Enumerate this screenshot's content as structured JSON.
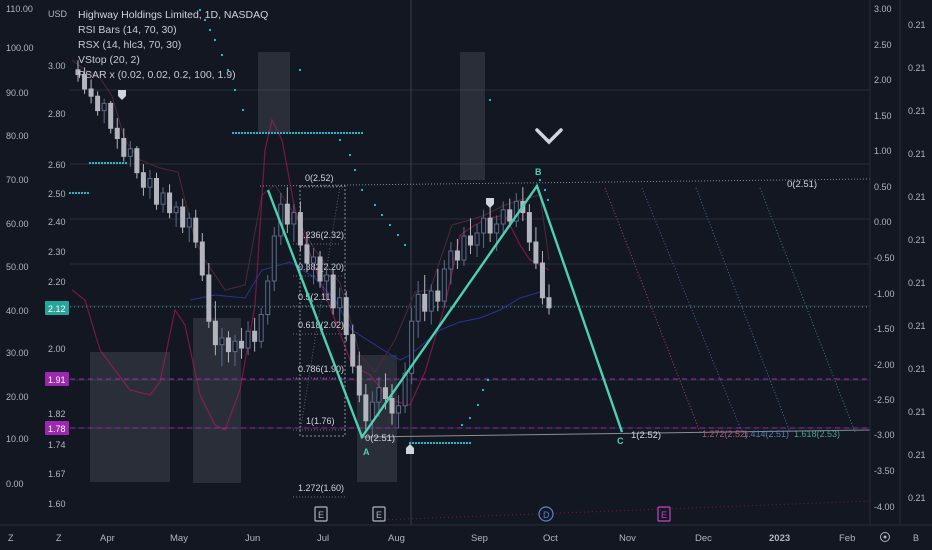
{
  "header": {
    "title": "Highway Holdings Limited, 1D, NASDAQ",
    "currency": "USD",
    "indicators": [
      "RSI Bars (14, 70, 30)",
      "RSX (14, hlc3, 70, 30)",
      "VStop (20, 2)",
      "PSAR x (0.02, 0.02, 0.2, 100, 1.9)"
    ]
  },
  "bottom_bar": {
    "left_icon": "zoom-icon",
    "right_icon": "settings-icon",
    "corner_labels": [
      "Z",
      "Z",
      "B"
    ]
  },
  "chart_data": {
    "type": "candlestick",
    "x_ticks": [
      "Apr",
      "May",
      "Jun",
      "Jul",
      "Aug",
      "Sep",
      "Oct",
      "Nov",
      "Dec",
      "2023",
      "Feb"
    ],
    "price_axis_inner": {
      "ticks": [
        "3.00",
        "2.80",
        "2.60",
        "2.50",
        "2.40",
        "2.30",
        "2.20",
        "2.00",
        "1.82",
        "1.74",
        "1.67",
        "1.60"
      ]
    },
    "rsi_axis_left": {
      "ticks": [
        "110.00",
        "100.00",
        "90.00",
        "80.00",
        "70.00",
        "60.00",
        "50.00",
        "40.00",
        "30.00",
        "20.00",
        "10.00",
        "0.00"
      ]
    },
    "rsx_axis_right": {
      "ticks": [
        "3.00",
        "2.50",
        "2.00",
        "1.50",
        "1.00",
        "0.50",
        "0.00",
        "-0.50",
        "-1.00",
        "-1.50",
        "-2.00",
        "-2.50",
        "-3.00",
        "-3.50",
        "-4.00"
      ]
    },
    "far_right_axis": {
      "ticks": [
        "0.21",
        "0.21",
        "0.21",
        "0.21",
        "0.21",
        "0.21",
        "0.21",
        "0.21",
        "0.21",
        "0.21",
        "0.21",
        "0.21"
      ]
    },
    "price_badges": [
      {
        "value": "2.12",
        "color": "#26a69a"
      },
      {
        "value": "1.91",
        "color": "#9c27b0"
      },
      {
        "value": "1.78",
        "color": "#9c27b0"
      }
    ],
    "fib_retracement": {
      "levels": [
        "0(2.52)",
        "0.236(2.32)",
        "0.382(2.20)",
        "0.5(2.11)",
        "0.618(2.02)",
        "0.786(1.90)",
        "1(1.76)",
        "1.272(1.60)"
      ]
    },
    "pattern_points": [
      "A",
      "B",
      "C"
    ],
    "pattern_labels": [
      "0(2.51)",
      "1(2.52)",
      "0(2.51)",
      "1.272(2.52)",
      "1.414(2.51)",
      "1.618(2.53)"
    ],
    "events": [
      "E",
      "E",
      "D",
      "E"
    ],
    "candles": [
      [
        2.98,
        3.02,
        2.93,
        2.96
      ],
      [
        2.96,
        2.99,
        2.88,
        2.9
      ],
      [
        2.9,
        2.94,
        2.84,
        2.87
      ],
      [
        2.87,
        2.89,
        2.79,
        2.81
      ],
      [
        2.81,
        2.86,
        2.76,
        2.84
      ],
      [
        2.84,
        2.85,
        2.72,
        2.74
      ],
      [
        2.74,
        2.78,
        2.66,
        2.7
      ],
      [
        2.7,
        2.74,
        2.61,
        2.63
      ],
      [
        2.63,
        2.69,
        2.59,
        2.66
      ],
      [
        2.66,
        2.67,
        2.55,
        2.57
      ],
      [
        2.57,
        2.6,
        2.49,
        2.52
      ],
      [
        2.52,
        2.58,
        2.48,
        2.55
      ],
      [
        2.55,
        2.57,
        2.44,
        2.46
      ],
      [
        2.46,
        2.52,
        2.43,
        2.5
      ],
      [
        2.5,
        2.53,
        2.41,
        2.43
      ],
      [
        2.43,
        2.47,
        2.38,
        2.45
      ],
      [
        2.45,
        2.48,
        2.36,
        2.38
      ],
      [
        2.38,
        2.43,
        2.33,
        2.41
      ],
      [
        2.41,
        2.44,
        2.31,
        2.33
      ],
      [
        2.33,
        2.36,
        2.2,
        2.22
      ],
      [
        2.22,
        2.26,
        2.06,
        2.08
      ],
      [
        2.08,
        2.14,
        1.98,
        2.01
      ],
      [
        2.01,
        2.06,
        1.95,
        2.03
      ],
      [
        2.03,
        2.05,
        1.96,
        1.99
      ],
      [
        1.99,
        2.04,
        1.95,
        2.02
      ],
      [
        2.02,
        2.06,
        1.97,
        2.0
      ],
      [
        2.0,
        2.08,
        1.98,
        2.05
      ],
      [
        2.05,
        2.09,
        1.99,
        2.02
      ],
      [
        2.02,
        2.12,
        2.0,
        2.1
      ],
      [
        2.1,
        2.22,
        2.07,
        2.2
      ],
      [
        2.2,
        2.38,
        2.17,
        2.35
      ],
      [
        2.35,
        2.5,
        2.32,
        2.46
      ],
      [
        2.46,
        2.52,
        2.36,
        2.39
      ],
      [
        2.39,
        2.46,
        2.33,
        2.43
      ],
      [
        2.43,
        2.47,
        2.3,
        2.32
      ],
      [
        2.32,
        2.36,
        2.23,
        2.26
      ],
      [
        2.26,
        2.31,
        2.19,
        2.28
      ],
      [
        2.28,
        2.3,
        2.18,
        2.2
      ],
      [
        2.2,
        2.25,
        2.14,
        2.22
      ],
      [
        2.22,
        2.24,
        2.1,
        2.12
      ],
      [
        2.12,
        2.18,
        2.08,
        2.15
      ],
      [
        2.15,
        2.17,
        2.02,
        2.04
      ],
      [
        2.04,
        2.07,
        1.93,
        1.95
      ],
      [
        1.95,
        1.99,
        1.85,
        1.87
      ],
      [
        1.87,
        1.9,
        1.77,
        1.8
      ],
      [
        1.8,
        1.88,
        1.76,
        1.85
      ],
      [
        1.85,
        1.92,
        1.81,
        1.89
      ],
      [
        1.89,
        1.93,
        1.83,
        1.86
      ],
      [
        1.86,
        1.9,
        1.79,
        1.82
      ],
      [
        1.82,
        1.87,
        1.78,
        1.84
      ],
      [
        1.84,
        1.96,
        1.82,
        1.93
      ],
      [
        1.93,
        2.12,
        1.9,
        2.08
      ],
      [
        2.08,
        2.2,
        2.03,
        2.16
      ],
      [
        2.16,
        2.22,
        2.08,
        2.11
      ],
      [
        2.11,
        2.19,
        2.07,
        2.17
      ],
      [
        2.17,
        2.24,
        2.11,
        2.14
      ],
      [
        2.14,
        2.27,
        2.12,
        2.24
      ],
      [
        2.24,
        2.33,
        2.19,
        2.3
      ],
      [
        2.3,
        2.34,
        2.24,
        2.27
      ],
      [
        2.27,
        2.38,
        2.25,
        2.35
      ],
      [
        2.35,
        2.41,
        2.29,
        2.32
      ],
      [
        2.32,
        2.39,
        2.28,
        2.36
      ],
      [
        2.36,
        2.44,
        2.31,
        2.41
      ],
      [
        2.41,
        2.45,
        2.33,
        2.36
      ],
      [
        2.36,
        2.42,
        2.3,
        2.39
      ],
      [
        2.39,
        2.47,
        2.35,
        2.44
      ],
      [
        2.44,
        2.48,
        2.38,
        2.4
      ],
      [
        2.4,
        2.5,
        2.38,
        2.47
      ],
      [
        2.47,
        2.52,
        2.4,
        2.43
      ],
      [
        2.43,
        2.46,
        2.3,
        2.33
      ],
      [
        2.33,
        2.38,
        2.24,
        2.26
      ],
      [
        2.26,
        2.3,
        2.13,
        2.15
      ],
      [
        2.15,
        2.19,
        2.1,
        2.12
      ]
    ]
  }
}
